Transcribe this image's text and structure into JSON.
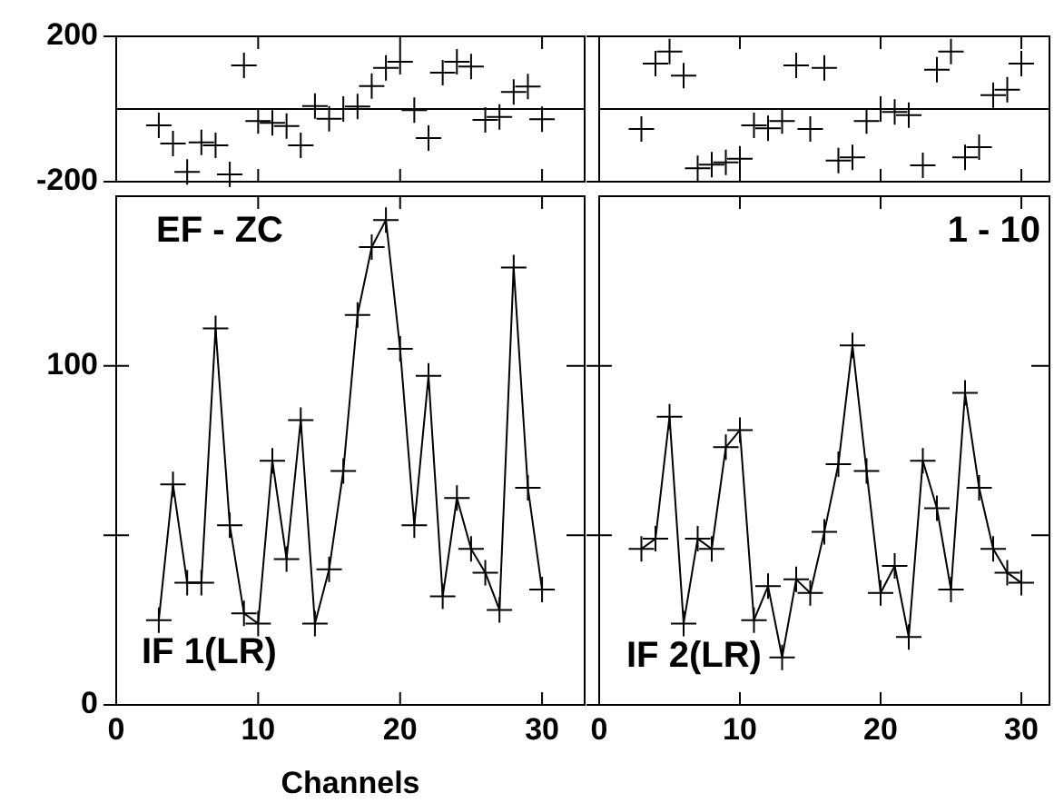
{
  "chart_data": [
    {
      "type": "scatter",
      "x": [
        3,
        4,
        5,
        6,
        7,
        8,
        9,
        10,
        11,
        12,
        13,
        14,
        15,
        16,
        17,
        18,
        19,
        20,
        21,
        22,
        23,
        24,
        25,
        26,
        27,
        28,
        29,
        30
      ],
      "series": [
        {
          "color": "#000000",
          "values": [
            -45,
            -95,
            -173,
            -92,
            -100,
            -180,
            120,
            -33,
            -38,
            -47,
            -100,
            8,
            -27,
            0,
            7,
            63,
            113,
            130,
            -3,
            -80,
            100,
            130,
            117,
            -30,
            -22,
            47,
            62,
            -28
          ]
        }
      ],
      "xlim": [
        0,
        33
      ],
      "xticks": [
        0,
        10,
        20,
        30
      ],
      "ylim": [
        -200,
        200
      ],
      "yticks": [
        -200,
        200
      ],
      "ref_lines": [
        {
          "axis": "y",
          "value": 0
        }
      ],
      "tick_labels": "y",
      "marker": "cross",
      "legend": false
    },
    {
      "type": "scatter",
      "x": [
        3,
        4,
        5,
        6,
        7,
        8,
        9,
        10,
        11,
        12,
        13,
        14,
        15,
        16,
        17,
        18,
        19,
        20,
        21,
        22,
        23,
        24,
        25,
        26,
        27,
        28,
        29,
        30
      ],
      "series": [
        {
          "color": "#000000",
          "values": [
            -55,
            125,
            158,
            92,
            -163,
            -153,
            -147,
            -137,
            -45,
            -53,
            -33,
            120,
            -55,
            113,
            -142,
            -133,
            -33,
            0,
            -8,
            -17,
            -155,
            108,
            158,
            -133,
            -105,
            38,
            53,
            125
          ]
        }
      ],
      "xlim": [
        0,
        32
      ],
      "xticks": [
        0,
        10,
        20,
        30
      ],
      "ylim": [
        -200,
        200
      ],
      "yticks": [
        {
          "value": -200,
          "label": null
        },
        {
          "value": 200,
          "label": null
        }
      ],
      "ref_lines": [
        {
          "axis": "y",
          "value": 0
        }
      ],
      "tick_labels": false,
      "marker": "cross",
      "legend": false
    },
    {
      "type": "line",
      "xlabel": "Channels",
      "annotations": [
        "EF - ZC",
        "IF 1(LR)"
      ],
      "x": [
        3,
        4,
        5,
        6,
        7,
        8,
        9,
        10,
        11,
        12,
        13,
        14,
        15,
        16,
        17,
        18,
        19,
        20,
        21,
        22,
        23,
        24,
        25,
        26,
        27,
        28,
        29,
        30
      ],
      "series": [
        {
          "color": "#000000",
          "values": [
            25,
            65,
            36,
            36,
            111,
            53,
            27,
            24,
            72,
            43,
            84,
            24,
            40,
            69,
            115,
            135,
            143,
            105,
            53,
            97,
            32,
            61,
            46,
            39,
            28,
            129,
            64,
            34
          ]
        }
      ],
      "xlim": [
        0,
        33
      ],
      "xticks": [
        0,
        10,
        20,
        30
      ],
      "ylim": [
        0,
        150
      ],
      "yticks": [
        0,
        {
          "value": 50,
          "label": null
        },
        100
      ],
      "marker": "cross",
      "line_style": "solid",
      "legend": false
    },
    {
      "type": "line",
      "annotations": [
        "1 - 10",
        "IF 2(LR)"
      ],
      "x": [
        3,
        4,
        5,
        6,
        7,
        8,
        9,
        10,
        11,
        12,
        13,
        14,
        15,
        16,
        17,
        18,
        19,
        20,
        21,
        22,
        23,
        24,
        25,
        26,
        27,
        28,
        29,
        30
      ],
      "series": [
        {
          "color": "#000000",
          "values": [
            46,
            49,
            85,
            24,
            49,
            46,
            76,
            81,
            25,
            35,
            14,
            37,
            33,
            51,
            71,
            106,
            69,
            33,
            41,
            20,
            72,
            58,
            34,
            92,
            64,
            46,
            39,
            36
          ]
        }
      ],
      "xlim": [
        0,
        32
      ],
      "xticks": [
        0,
        10,
        20,
        30
      ],
      "ylim": [
        0,
        150
      ],
      "yticks": [
        {
          "value": 0,
          "label": null
        },
        {
          "value": 50,
          "label": null
        },
        {
          "value": 100,
          "label": null
        }
      ],
      "tick_labels": "x",
      "marker": "cross",
      "line_style": "solid",
      "legend": false
    }
  ]
}
